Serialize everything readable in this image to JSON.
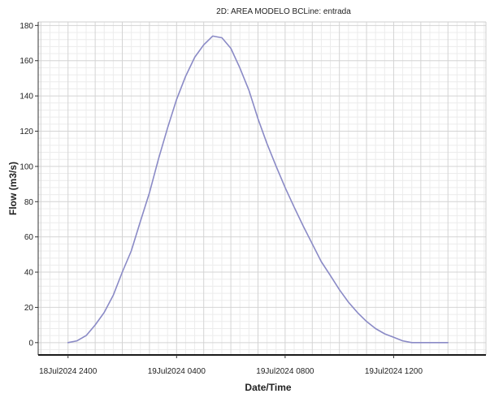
{
  "chart_data": {
    "type": "line",
    "title": "2D: AREA MODELO BCLine: entrada",
    "xlabel": "Date/Time",
    "ylabel": "Flow (m3/s)",
    "x_unit": "hours from 18Jul2024 2400",
    "xlim": [
      -1.1,
      15.4
    ],
    "ylim": [
      -7,
      182
    ],
    "y_ticks": [
      0,
      20,
      40,
      60,
      80,
      100,
      120,
      140,
      160,
      180
    ],
    "x_ticks": [
      {
        "value": 0,
        "label": "18Jul2024 2400"
      },
      {
        "value": 4,
        "label": "19Jul2024 0400"
      },
      {
        "value": 8,
        "label": "19Jul2024 0800"
      },
      {
        "value": 12,
        "label": "19Jul2024 1200"
      }
    ],
    "grid": true,
    "series": [
      {
        "color": "#8a8ac6",
        "x": [
          0.0,
          0.33,
          0.67,
          1.0,
          1.33,
          1.67,
          2.0,
          2.33,
          2.67,
          3.0,
          3.33,
          3.67,
          4.0,
          4.33,
          4.67,
          5.0,
          5.33,
          5.67,
          6.0,
          6.33,
          6.67,
          7.0,
          7.33,
          7.67,
          8.0,
          8.33,
          8.67,
          9.0,
          9.33,
          9.67,
          10.0,
          10.33,
          10.67,
          11.0,
          11.33,
          11.67,
          12.0,
          12.33,
          12.67,
          13.0,
          13.33,
          13.67,
          14.0
        ],
        "y": [
          0,
          1,
          4,
          10,
          17,
          27,
          40,
          52,
          69,
          85,
          104,
          122,
          138,
          151,
          162,
          169,
          174,
          173,
          167,
          156,
          143,
          127,
          113,
          100,
          88,
          77,
          66,
          56,
          46,
          38,
          30,
          23,
          17,
          12,
          8,
          5,
          3,
          1,
          0,
          0,
          0,
          0,
          0
        ]
      }
    ]
  }
}
